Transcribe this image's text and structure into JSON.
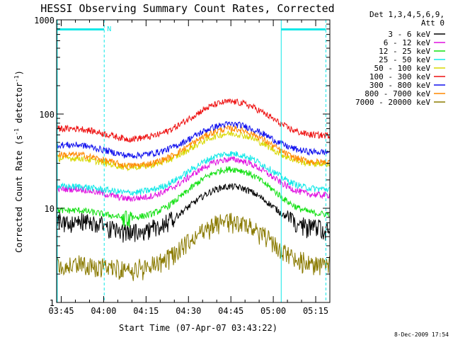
{
  "chart_data": {
    "type": "line",
    "title": "HESSI Observing Summary Count Rates, Corrected",
    "xlabel": "Start Time (07-Apr-07 03:43:22)",
    "ylabel_main": "Corrected Count Rate (s",
    "ylabel_sup1": "-1",
    "ylabel_mid": " detector",
    "ylabel_sup2": "-1",
    "ylabel_end": ")",
    "ylog": true,
    "ylim": [
      1,
      1000
    ],
    "xlim_minutes": [
      223.37,
      320.0
    ],
    "x_ticks": [
      {
        "label": "03:45",
        "min": 225
      },
      {
        "label": "04:00",
        "min": 240
      },
      {
        "label": "04:15",
        "min": 255
      },
      {
        "label": "04:30",
        "min": 270
      },
      {
        "label": "04:45",
        "min": 285
      },
      {
        "label": "05:00",
        "min": 300
      },
      {
        "label": "05:15",
        "min": 315
      }
    ],
    "y_ticks": [
      {
        "label": "1",
        "value": 1
      },
      {
        "label": "10",
        "value": 10
      },
      {
        "label": "100",
        "value": 100
      },
      {
        "label": "1000",
        "value": 1000
      }
    ],
    "legend_header": [
      "Det 1,3,4,5,6,9,",
      "Att 0"
    ],
    "legend_position": "right",
    "series": [
      {
        "name": "3 - 6 keV",
        "color": "#000000",
        "base": 5.4,
        "peak": 17,
        "start": 7.5
      },
      {
        "name": "6 - 12 keV",
        "color": "#e010e0",
        "base": 12.5,
        "peak": 33,
        "start": 16
      },
      {
        "name": "12 - 25 keV",
        "color": "#10e010",
        "base": 7.8,
        "peak": 26,
        "start": 9.5
      },
      {
        "name": "25 - 50 keV",
        "color": "#10e8e8",
        "base": 14.5,
        "peak": 38,
        "start": 17
      },
      {
        "name": "50 - 100 keV",
        "color": "#d8d800",
        "base": 27,
        "peak": 62,
        "start": 34
      },
      {
        "name": "100 - 300 keV",
        "color": "#ee1010",
        "base": 54,
        "peak": 135,
        "start": 70
      },
      {
        "name": "300 - 800 keV",
        "color": "#1010ee",
        "base": 36,
        "peak": 78,
        "start": 47
      },
      {
        "name": "800 - 7000 keV",
        "color": "#ff8800",
        "base": 28,
        "peak": 70,
        "start": 37
      },
      {
        "name": "7000 - 20000 keV",
        "color": "#8a7a00",
        "base": 2.2,
        "peak": 7.2,
        "start": 2.5
      }
    ],
    "saa_flag_label": "N",
    "boundary_lines_minutes": [
      223.6,
      240.2,
      302.8,
      318.6
    ],
    "night_bars": [
      [
        223.6,
        240.2
      ],
      [
        302.8,
        318.6
      ]
    ]
  },
  "footer": {
    "timestamp": "8-Dec-2009 17:54"
  },
  "colors": {
    "background": "#ffffff",
    "axis": "#000000",
    "flag_cyan": "#10e8e8"
  }
}
